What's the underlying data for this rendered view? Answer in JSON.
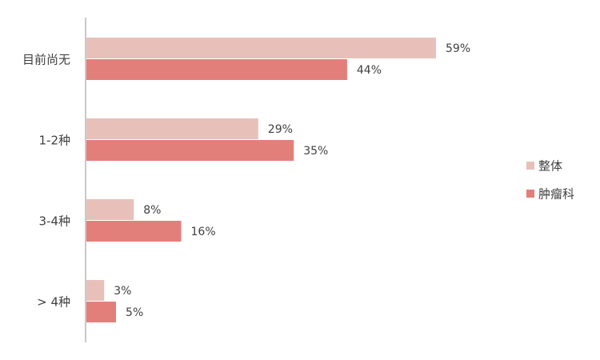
{
  "chart_data": {
    "type": "bar",
    "orientation": "horizontal",
    "categories": [
      "目前尚无",
      "1-2种",
      "3-4种",
      "> 4种"
    ],
    "series": [
      {
        "name": "整体",
        "values": [
          59,
          29,
          8,
          3
        ],
        "labels": [
          "59%",
          "29%",
          "8%",
          "3%"
        ],
        "color": "#E8C0BA"
      },
      {
        "name": "肿瘤科",
        "values": [
          44,
          35,
          16,
          5
        ],
        "labels": [
          "44%",
          "35%",
          "16%",
          "5%"
        ],
        "color": "#E37F7B"
      }
    ],
    "xlim": [
      0,
      100
    ],
    "legend_position": "right",
    "grid": false
  }
}
